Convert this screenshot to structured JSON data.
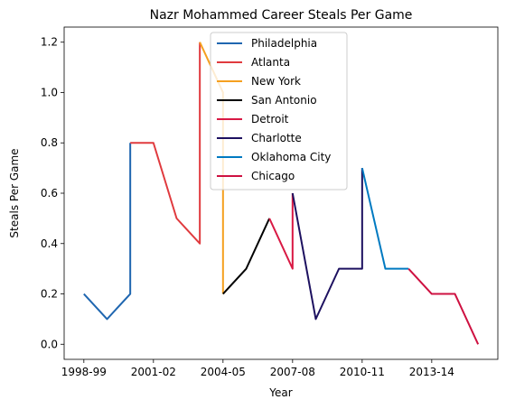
{
  "chart_data": {
    "type": "line",
    "title": "Nazr Mohammed Career Steals Per Game",
    "xlabel": "Year",
    "ylabel": "Steals Per Game",
    "xlim": [
      -0.85,
      17.85
    ],
    "ylim": [
      -0.06,
      1.26
    ],
    "x_ticks": [
      {
        "x": 0,
        "label": "1998-99"
      },
      {
        "x": 3,
        "label": "2001-02"
      },
      {
        "x": 6,
        "label": "2004-05"
      },
      {
        "x": 9,
        "label": "2007-08"
      },
      {
        "x": 12,
        "label": "2010-11"
      },
      {
        "x": 15,
        "label": "2013-14"
      }
    ],
    "y_ticks": [
      {
        "y": 0.0,
        "label": "0.0"
      },
      {
        "y": 0.2,
        "label": "0.2"
      },
      {
        "y": 0.4,
        "label": "0.4"
      },
      {
        "y": 0.6,
        "label": "0.6"
      },
      {
        "y": 0.8,
        "label": "0.8"
      },
      {
        "y": 1.0,
        "label": "1.0"
      },
      {
        "y": 1.2,
        "label": "1.2"
      }
    ],
    "grid": false,
    "legend_position": "top-center",
    "series": [
      {
        "name": "Philadelphia",
        "color": "#1f66b0",
        "x": [
          0,
          1,
          2,
          2
        ],
        "y": [
          0.2,
          0.1,
          0.2,
          0.8
        ]
      },
      {
        "name": "Atlanta",
        "color": "#e03a3e",
        "x": [
          2,
          3,
          4,
          5,
          5
        ],
        "y": [
          0.8,
          0.8,
          0.5,
          0.4,
          1.2
        ]
      },
      {
        "name": "New York",
        "color": "#f5a020",
        "x": [
          5,
          6,
          6
        ],
        "y": [
          1.2,
          1.0,
          0.2
        ]
      },
      {
        "name": "San Antonio",
        "color": "#000000",
        "x": [
          6,
          7,
          8
        ],
        "y": [
          0.2,
          0.3,
          0.5
        ]
      },
      {
        "name": "Detroit",
        "color": "#d91944",
        "x": [
          8,
          9,
          9
        ],
        "y": [
          0.5,
          0.3,
          0.6
        ]
      },
      {
        "name": "Charlotte",
        "color": "#1d1160",
        "x": [
          9,
          10,
          11,
          12,
          12
        ],
        "y": [
          0.6,
          0.1,
          0.3,
          0.3,
          0.7
        ]
      },
      {
        "name": "Oklahoma City",
        "color": "#007ac1",
        "x": [
          12,
          13,
          14
        ],
        "y": [
          0.7,
          0.3,
          0.3
        ]
      },
      {
        "name": "Chicago",
        "color": "#ce1141",
        "x": [
          14,
          15,
          16,
          17
        ],
        "y": [
          0.3,
          0.2,
          0.2,
          0.0
        ]
      }
    ]
  }
}
